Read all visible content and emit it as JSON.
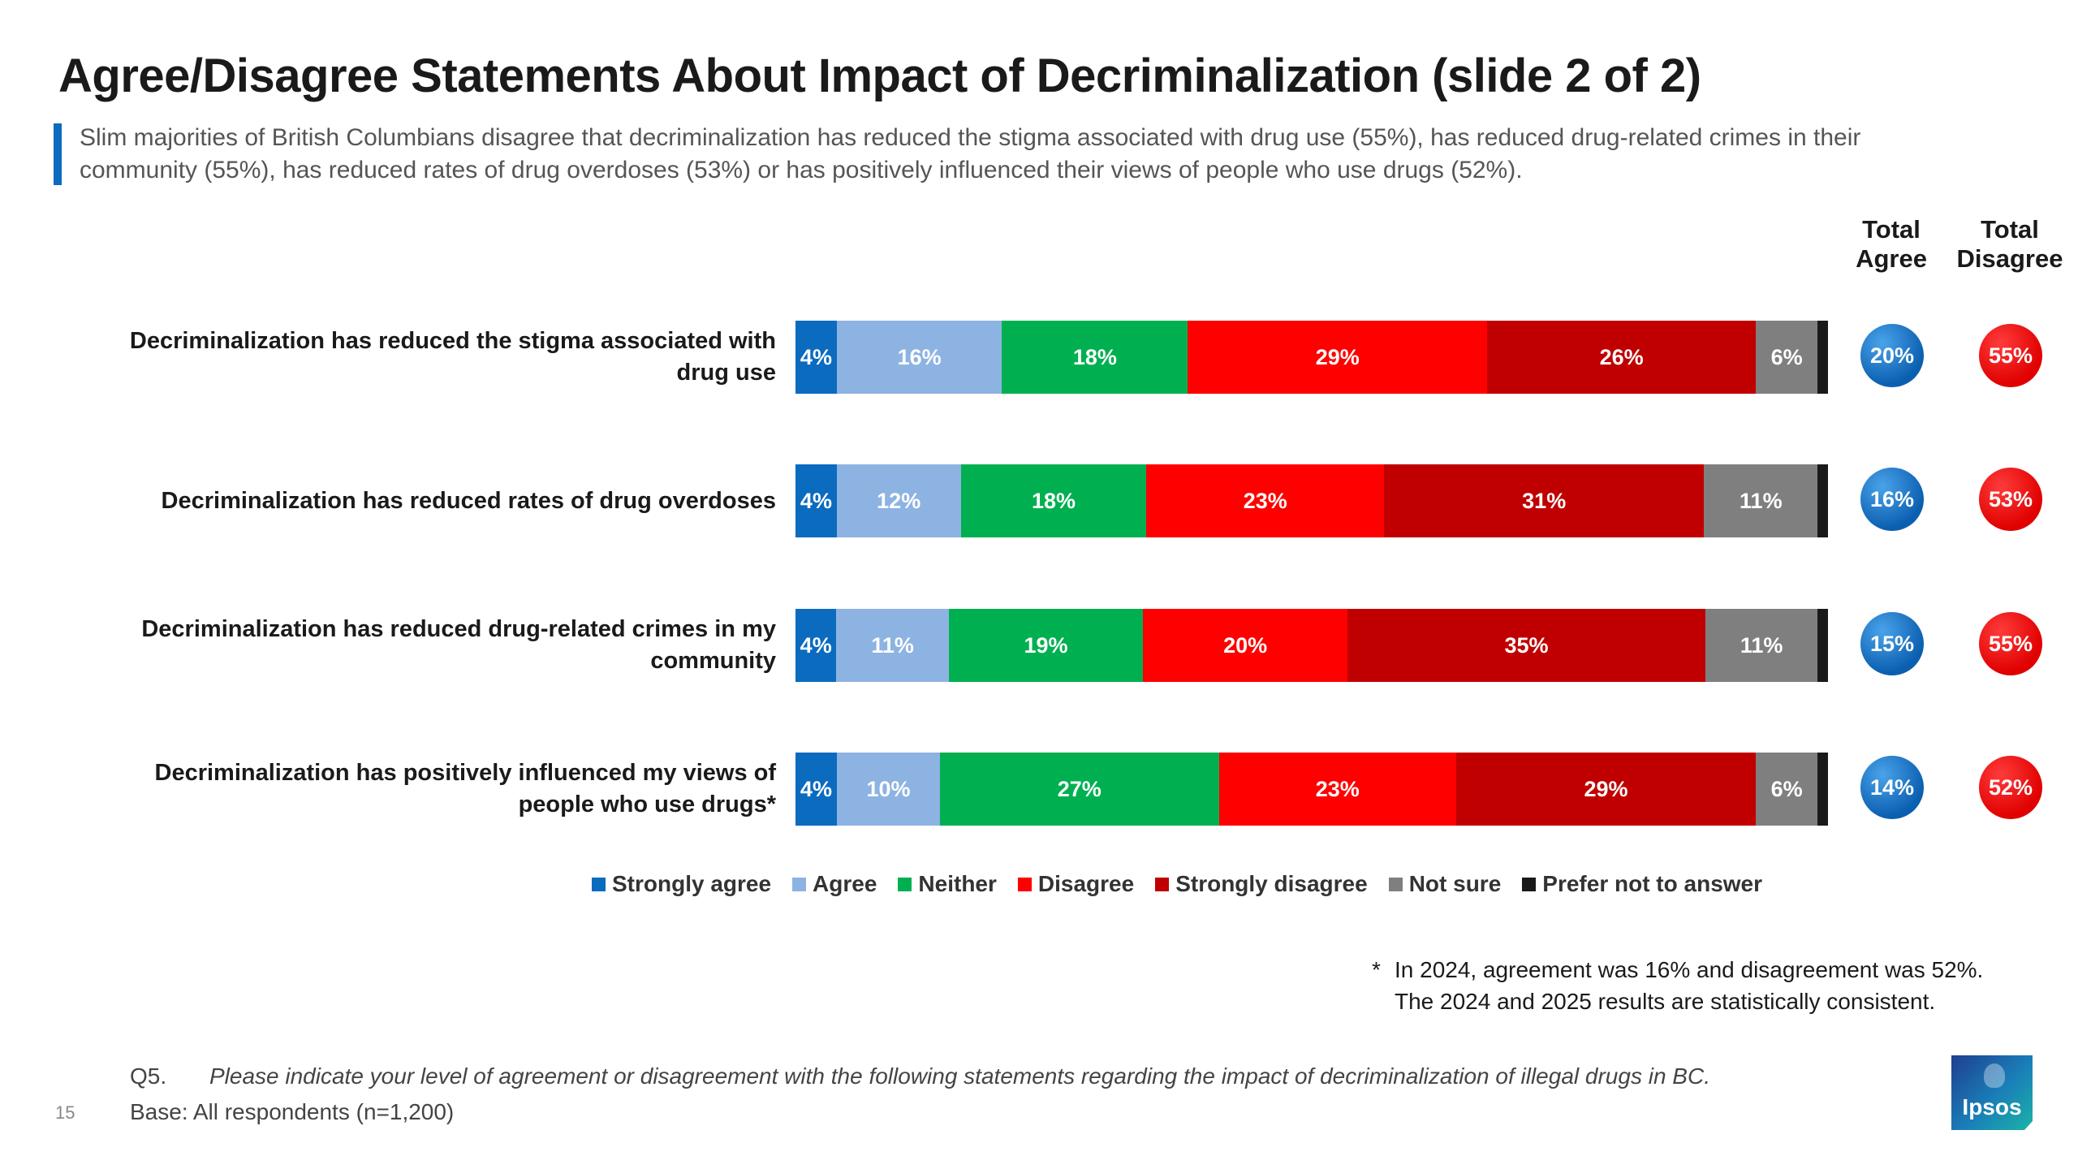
{
  "title": "Agree/Disagree Statements About Impact of Decriminalization (slide 2 of 2)",
  "subtitle": "Slim majorities of British Columbians disagree that decriminalization has reduced the stigma associated with drug use (55%), has reduced drug-related crimes in their community (55%), has reduced rates of drug overdoses (53%) or has positively influenced their views of people who use drugs (52%).",
  "headers": {
    "total_agree": "Total Agree",
    "total_disagree": "Total Disagree"
  },
  "colors": {
    "strongly_agree": "#0b6bbf",
    "agree": "#8db3e2",
    "neither": "#00b050",
    "disagree": "#ff0000",
    "strongly_disagree": "#c00000",
    "not_sure": "#7f7f7f",
    "prefer_not": "#1a1a1a",
    "accent": "#0b6bbf"
  },
  "chart_data": {
    "type": "bar",
    "orientation": "horizontal",
    "stacked": true,
    "xlim": [
      0,
      100
    ],
    "categories": [
      "Decriminalization has reduced the stigma associated with drug use",
      "Decriminalization has reduced rates of drug overdoses",
      "Decriminalization has reduced drug-related crimes in my community",
      "Decriminalization has positively influenced my views of people who use drugs*"
    ],
    "series": [
      {
        "name": "Strongly agree",
        "key": "strongly_agree",
        "values": [
          4,
          4,
          4,
          4
        ],
        "labels": [
          "4%",
          "4%",
          "4%",
          "4%"
        ]
      },
      {
        "name": "Agree",
        "key": "agree",
        "values": [
          16,
          12,
          11,
          10
        ],
        "labels": [
          "16%",
          "12%",
          "11%",
          "10%"
        ]
      },
      {
        "name": "Neither",
        "key": "neither",
        "values": [
          18,
          18,
          19,
          27
        ],
        "labels": [
          "18%",
          "18%",
          "19%",
          "27%"
        ]
      },
      {
        "name": "Disagree",
        "key": "disagree",
        "values": [
          29,
          23,
          20,
          23
        ],
        "labels": [
          "29%",
          "23%",
          "20%",
          "23%"
        ]
      },
      {
        "name": "Strongly disagree",
        "key": "strongly_disagree",
        "values": [
          26,
          31,
          35,
          29
        ],
        "labels": [
          "26%",
          "31%",
          "35%",
          "29%"
        ]
      },
      {
        "name": "Not sure",
        "key": "not_sure",
        "values": [
          6,
          11,
          11,
          6
        ],
        "labels": [
          "6%",
          "11%",
          "11%",
          "6%"
        ]
      },
      {
        "name": "Prefer not to answer",
        "key": "prefer_not",
        "values": [
          1,
          1,
          1,
          1
        ],
        "labels": [
          "",
          "",
          "",
          ""
        ]
      }
    ],
    "total_agree": [
      "20%",
      "16%",
      "15%",
      "14%"
    ],
    "total_disagree": [
      "55%",
      "53%",
      "55%",
      "52%"
    ],
    "legend_position": "bottom"
  },
  "footnote": {
    "star": "*",
    "line1": "In 2024, agreement was 16% and disagreement was 52%.",
    "line2": "The 2024 and 2025 results are statistically consistent."
  },
  "question_number": "Q5.",
  "question_text": "Please indicate your level of agreement or disagreement with the following statements regarding the impact of decriminalization of illegal drugs in BC.",
  "base": "Base: All respondents (n=1,200)",
  "page_number": "15",
  "logo_text": "Ipsos"
}
